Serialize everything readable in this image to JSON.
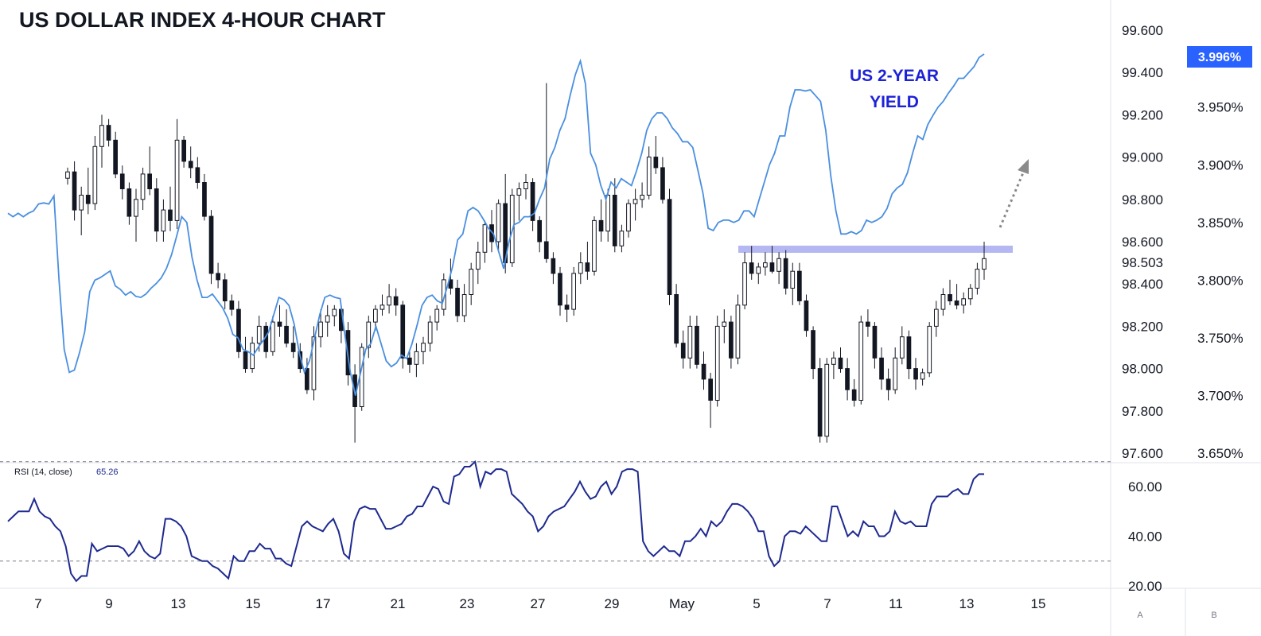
{
  "chart_data": {
    "type": "candlestick",
    "title": "US DOLLAR INDEX 4-HOUR CHART",
    "annotation": "US 2-YEAR YIELD",
    "annotation_lines": [
      "US 2-YEAR",
      "YIELD"
    ],
    "current_price_label": "98.503",
    "current_yield_label": "3.996%",
    "x_tick_labels": [
      "7",
      "9",
      "13",
      "15",
      "17",
      "21",
      "23",
      "27",
      "29",
      "May",
      "5",
      "7",
      "11",
      "13",
      "15"
    ],
    "price_axis": {
      "ticks": [
        "99.600",
        "99.400",
        "99.200",
        "99.000",
        "98.800",
        "98.600",
        "98.400",
        "98.200",
        "98.000",
        "97.800",
        "97.600"
      ],
      "range": [
        97.58,
        99.72
      ]
    },
    "yield_axis": {
      "ticks": [
        "3.996%",
        "3.950%",
        "3.900%",
        "3.850%",
        "3.800%",
        "3.750%",
        "3.700%",
        "3.650%"
      ],
      "range": [
        3.645,
        4.02
      ]
    },
    "resistance_level": 98.57,
    "rsi": {
      "label": "RSI (14, close)",
      "value": "65.26",
      "ticks": [
        "60.00",
        "40.00",
        "20.00"
      ],
      "range": [
        17,
        72
      ],
      "overbought": 70,
      "oversold": 30,
      "values": [
        46,
        48,
        50,
        50,
        50,
        55,
        50,
        48,
        47,
        44,
        42,
        36,
        25,
        22,
        24,
        24,
        37,
        34,
        35,
        36,
        36,
        36,
        35,
        32,
        34,
        38,
        34,
        32,
        31,
        33,
        47,
        47,
        46,
        44,
        40,
        32,
        31,
        30,
        30,
        28,
        27,
        25,
        23,
        32,
        30,
        30,
        34,
        34,
        37,
        35,
        35,
        31,
        31,
        29,
        28,
        36,
        44,
        46,
        44,
        43,
        42,
        45,
        47,
        42,
        33,
        31,
        46,
        51,
        52,
        51,
        51,
        47,
        43,
        43,
        44,
        45,
        48,
        49,
        52,
        52,
        56,
        60,
        59,
        54,
        53,
        64,
        65,
        68,
        68,
        70,
        60,
        66,
        65,
        67,
        67,
        66,
        57,
        55,
        53,
        50,
        48,
        42,
        44,
        48,
        50,
        51,
        52,
        55,
        58,
        62,
        58,
        55,
        56,
        60,
        62,
        57,
        60,
        66,
        67,
        67,
        66,
        38,
        34,
        32,
        34,
        36,
        34,
        34,
        32,
        38,
        38,
        40,
        43,
        40,
        46,
        44,
        46,
        50,
        53,
        53,
        52,
        50,
        47,
        42,
        42,
        32,
        28,
        30,
        40,
        42,
        42,
        41,
        44,
        42,
        40,
        38,
        38,
        52,
        52,
        46,
        40,
        42,
        40,
        46,
        44,
        44,
        40,
        40,
        42,
        50,
        46,
        45,
        46,
        44,
        44,
        44,
        53,
        56,
        56,
        56,
        58,
        59,
        57,
        57,
        63,
        65,
        65
      ],
      "values_note": "RSI read approximately across the visible bars"
    },
    "yield_series": [
      3.858,
      3.855,
      3.858,
      3.855,
      3.858,
      3.86,
      3.866,
      3.867,
      3.866,
      3.873,
      3.8,
      3.74,
      3.72,
      3.722,
      3.737,
      3.755,
      3.79,
      3.8,
      3.802,
      3.805,
      3.808,
      3.795,
      3.792,
      3.787,
      3.79,
      3.786,
      3.785,
      3.788,
      3.793,
      3.797,
      3.802,
      3.81,
      3.822,
      3.838,
      3.855,
      3.85,
      3.82,
      3.8,
      3.785,
      3.785,
      3.788,
      3.782,
      3.776,
      3.767,
      3.753,
      3.75,
      3.74,
      3.738,
      3.735,
      3.742,
      3.748,
      3.755,
      3.77,
      3.785,
      3.783,
      3.778,
      3.762,
      3.737,
      3.72,
      3.73,
      3.75,
      3.77,
      3.785,
      3.787,
      3.785,
      3.784,
      3.75,
      3.72,
      3.7,
      3.72,
      3.74,
      3.745,
      3.76,
      3.745,
      3.73,
      3.725,
      3.728,
      3.735,
      3.732,
      3.744,
      3.76,
      3.778,
      3.785,
      3.787,
      3.782,
      3.78,
      3.795,
      3.812,
      3.835,
      3.84,
      3.86,
      3.863,
      3.86,
      3.853,
      3.845,
      3.84,
      3.825,
      3.81,
      3.833,
      3.848,
      3.85,
      3.855,
      3.855,
      3.858,
      3.87,
      3.88,
      3.905,
      3.915,
      3.93,
      3.94,
      3.96,
      3.978,
      3.99,
      3.97,
      3.91,
      3.9,
      3.882,
      3.87,
      3.885,
      3.88,
      3.888,
      3.885,
      3.882,
      3.895,
      3.91,
      3.93,
      3.94,
      3.945,
      3.945,
      3.94,
      3.932,
      3.927,
      3.92,
      3.92,
      3.915,
      3.895,
      3.875,
      3.845,
      3.843,
      3.85,
      3.852,
      3.852,
      3.85,
      3.852,
      3.86,
      3.86,
      3.855,
      3.87,
      3.885,
      3.9,
      3.91,
      3.925,
      3.925,
      3.95,
      3.965,
      3.965,
      3.964,
      3.965,
      3.96,
      3.955,
      3.93,
      3.89,
      3.86,
      3.84,
      3.84,
      3.842,
      3.84,
      3.843,
      3.852,
      3.85,
      3.852,
      3.855,
      3.862,
      3.875,
      3.88,
      3.883,
      3.893,
      3.91,
      3.925,
      3.922,
      3.935,
      3.943,
      3.95,
      3.955,
      3.962,
      3.968,
      3.975,
      3.975,
      3.98,
      3.985,
      3.993,
      3.996
    ],
    "candles_note": "Approximate OHLC read from chart",
    "candles": [
      [
        98.9,
        98.95,
        98.87,
        98.93
      ],
      [
        98.93,
        98.98,
        98.7,
        98.75
      ],
      [
        98.75,
        98.86,
        98.63,
        98.82
      ],
      [
        98.82,
        98.95,
        98.73,
        98.78
      ],
      [
        98.78,
        99.1,
        98.75,
        99.05
      ],
      [
        99.05,
        99.2,
        98.95,
        99.15
      ],
      [
        99.15,
        99.18,
        99.05,
        99.08
      ],
      [
        99.08,
        99.12,
        98.9,
        98.92
      ],
      [
        98.92,
        98.96,
        98.8,
        98.85
      ],
      [
        98.85,
        98.88,
        98.68,
        98.72
      ],
      [
        98.72,
        98.85,
        98.6,
        98.8
      ],
      [
        98.8,
        98.95,
        98.75,
        98.92
      ],
      [
        98.92,
        99.05,
        98.82,
        98.85
      ],
      [
        98.85,
        98.9,
        98.6,
        98.65
      ],
      [
        98.65,
        98.8,
        98.6,
        98.75
      ],
      [
        98.75,
        98.86,
        98.65,
        98.7
      ],
      [
        98.7,
        99.18,
        98.66,
        99.08
      ],
      [
        99.08,
        99.1,
        98.95,
        98.98
      ],
      [
        98.98,
        99.05,
        98.9,
        98.95
      ],
      [
        98.95,
        99.0,
        98.85,
        98.88
      ],
      [
        98.88,
        98.92,
        98.7,
        98.72
      ],
      [
        98.72,
        98.75,
        98.4,
        98.45
      ],
      [
        98.45,
        98.5,
        98.38,
        98.42
      ],
      [
        98.42,
        98.45,
        98.28,
        98.32
      ],
      [
        98.32,
        98.35,
        98.25,
        98.28
      ],
      [
        98.28,
        98.32,
        98.05,
        98.08
      ],
      [
        98.08,
        98.15,
        97.98,
        98.0
      ],
      [
        98.0,
        98.15,
        97.98,
        98.12
      ],
      [
        98.12,
        98.25,
        98.08,
        98.2
      ],
      [
        98.2,
        98.22,
        98.05,
        98.08
      ],
      [
        98.08,
        98.25,
        98.06,
        98.22
      ],
      [
        98.22,
        98.3,
        98.15,
        98.2
      ],
      [
        98.2,
        98.28,
        98.1,
        98.12
      ],
      [
        98.12,
        98.2,
        98.05,
        98.08
      ],
      [
        98.08,
        98.12,
        97.98,
        98.0
      ],
      [
        98.0,
        98.05,
        97.88,
        97.9
      ],
      [
        97.9,
        98.2,
        97.85,
        98.15
      ],
      [
        98.15,
        98.28,
        98.1,
        98.22
      ],
      [
        98.22,
        98.3,
        98.15,
        98.25
      ],
      [
        98.25,
        98.3,
        98.2,
        98.28
      ],
      [
        98.28,
        98.3,
        98.12,
        98.18
      ],
      [
        98.18,
        98.22,
        97.92,
        97.97
      ],
      [
        97.97,
        98.02,
        97.65,
        97.82
      ],
      [
        97.82,
        98.12,
        97.8,
        98.1
      ],
      [
        98.1,
        98.25,
        98.05,
        98.22
      ],
      [
        98.22,
        98.3,
        98.18,
        98.28
      ],
      [
        98.28,
        98.35,
        98.25,
        98.3
      ],
      [
        98.3,
        98.4,
        98.26,
        98.34
      ],
      [
        98.34,
        98.38,
        98.25,
        98.3
      ],
      [
        98.3,
        98.32,
        98.0,
        98.05
      ],
      [
        98.05,
        98.08,
        97.98,
        98.02
      ],
      [
        98.02,
        98.12,
        97.96,
        98.08
      ],
      [
        98.08,
        98.15,
        98.02,
        98.12
      ],
      [
        98.12,
        98.25,
        98.08,
        98.22
      ],
      [
        98.22,
        98.3,
        98.18,
        98.28
      ],
      [
        98.28,
        98.45,
        98.25,
        98.42
      ],
      [
        98.42,
        98.52,
        98.35,
        98.38
      ],
      [
        98.38,
        98.42,
        98.22,
        98.25
      ],
      [
        98.25,
        98.4,
        98.22,
        98.35
      ],
      [
        98.35,
        98.5,
        98.3,
        98.47
      ],
      [
        98.47,
        98.6,
        98.4,
        98.55
      ],
      [
        98.55,
        98.7,
        98.5,
        98.68
      ],
      [
        98.68,
        98.75,
        98.55,
        98.6
      ],
      [
        98.6,
        98.8,
        98.55,
        98.78
      ],
      [
        98.78,
        98.92,
        98.45,
        98.5
      ],
      [
        98.5,
        98.85,
        98.48,
        98.82
      ],
      [
        98.82,
        98.88,
        98.7,
        98.85
      ],
      [
        98.85,
        98.92,
        98.8,
        98.88
      ],
      [
        98.88,
        98.9,
        98.65,
        98.7
      ],
      [
        98.7,
        98.72,
        98.55,
        98.6
      ],
      [
        98.6,
        99.35,
        98.5,
        98.52
      ],
      [
        98.52,
        98.55,
        98.4,
        98.45
      ],
      [
        98.45,
        98.48,
        98.25,
        98.3
      ],
      [
        98.3,
        98.35,
        98.22,
        98.28
      ],
      [
        98.28,
        98.48,
        98.25,
        98.45
      ],
      [
        98.45,
        98.55,
        98.4,
        98.5
      ],
      [
        98.5,
        98.6,
        98.42,
        98.46
      ],
      [
        98.46,
        98.72,
        98.44,
        98.7
      ],
      [
        98.7,
        98.8,
        98.6,
        98.65
      ],
      [
        98.65,
        98.85,
        98.6,
        98.82
      ],
      [
        98.82,
        98.9,
        98.55,
        98.58
      ],
      [
        98.58,
        98.68,
        98.55,
        98.65
      ],
      [
        98.65,
        98.8,
        98.62,
        98.78
      ],
      [
        98.78,
        98.85,
        98.7,
        98.8
      ],
      [
        98.8,
        98.88,
        98.76,
        98.82
      ],
      [
        98.82,
        99.05,
        98.8,
        99.0
      ],
      [
        99.0,
        99.1,
        98.92,
        98.95
      ],
      [
        98.95,
        99.0,
        98.78,
        98.8
      ],
      [
        98.8,
        98.85,
        98.3,
        98.35
      ],
      [
        98.35,
        98.4,
        98.1,
        98.12
      ],
      [
        98.12,
        98.18,
        98.0,
        98.05
      ],
      [
        98.05,
        98.25,
        98.0,
        98.2
      ],
      [
        98.2,
        98.25,
        98.0,
        98.02
      ],
      [
        98.02,
        98.08,
        97.9,
        97.95
      ],
      [
        97.95,
        97.98,
        97.72,
        97.85
      ],
      [
        97.85,
        98.25,
        97.82,
        98.2
      ],
      [
        98.2,
        98.28,
        98.12,
        98.22
      ],
      [
        98.22,
        98.25,
        98.0,
        98.05
      ],
      [
        98.05,
        98.35,
        98.02,
        98.3
      ],
      [
        98.3,
        98.55,
        98.28,
        98.5
      ],
      [
        98.5,
        98.58,
        98.42,
        98.45
      ],
      [
        98.45,
        98.5,
        98.4,
        98.48
      ],
      [
        98.48,
        98.55,
        98.44,
        98.5
      ],
      [
        98.5,
        98.58,
        98.45,
        98.46
      ],
      [
        98.46,
        98.55,
        98.4,
        98.52
      ],
      [
        98.52,
        98.56,
        98.35,
        98.38
      ],
      [
        98.38,
        98.5,
        98.3,
        98.46
      ],
      [
        98.46,
        98.5,
        98.3,
        98.32
      ],
      [
        98.32,
        98.35,
        98.15,
        98.18
      ],
      [
        98.18,
        98.2,
        97.95,
        98.0
      ],
      [
        98.0,
        98.05,
        97.65,
        97.68
      ],
      [
        97.68,
        98.05,
        97.65,
        98.02
      ],
      [
        98.02,
        98.08,
        97.95,
        98.05
      ],
      [
        98.05,
        98.1,
        97.98,
        98.0
      ],
      [
        98.0,
        98.05,
        97.85,
        97.9
      ],
      [
        97.9,
        97.95,
        97.82,
        97.85
      ],
      [
        97.85,
        98.25,
        97.83,
        98.22
      ],
      [
        98.22,
        98.28,
        98.15,
        98.2
      ],
      [
        98.2,
        98.22,
        98.0,
        98.05
      ],
      [
        98.05,
        98.1,
        97.9,
        97.95
      ],
      [
        97.95,
        98.0,
        97.85,
        97.9
      ],
      [
        97.9,
        98.1,
        97.88,
        98.05
      ],
      [
        98.05,
        98.2,
        98.02,
        98.15
      ],
      [
        98.15,
        98.18,
        97.95,
        98.0
      ],
      [
        98.0,
        98.05,
        97.9,
        97.95
      ],
      [
        97.95,
        98.0,
        97.92,
        97.98
      ],
      [
        97.98,
        98.22,
        97.96,
        98.2
      ],
      [
        98.2,
        98.32,
        98.15,
        98.28
      ],
      [
        98.28,
        98.38,
        98.25,
        98.35
      ],
      [
        98.35,
        98.42,
        98.3,
        98.32
      ],
      [
        98.32,
        98.4,
        98.28,
        98.3
      ],
      [
        98.3,
        98.36,
        98.26,
        98.33
      ],
      [
        98.33,
        98.4,
        98.3,
        98.38
      ],
      [
        98.38,
        98.5,
        98.35,
        98.47
      ],
      [
        98.47,
        98.6,
        98.42,
        98.52
      ]
    ]
  }
}
